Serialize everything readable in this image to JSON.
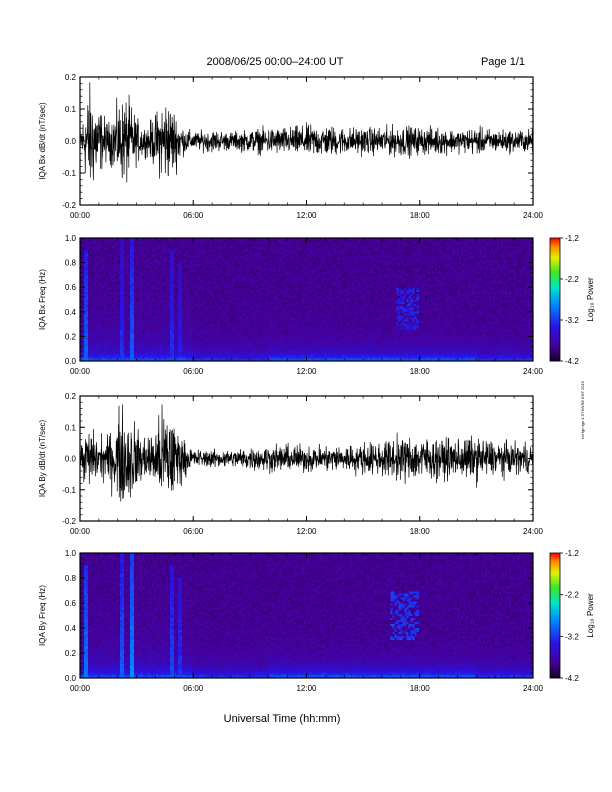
{
  "header": {
    "title": "2008/06/25  00:00–24:00 UT",
    "page": "Page 1/1"
  },
  "footer": {
    "xlabel": "Universal Time (hh:mm)",
    "side_note": "rot fgn fgn 4 STHNRE ESF 2019"
  },
  "colorbar": {
    "label": "Log₁₀ Power",
    "ticks": [
      "-1.2",
      "-2.2",
      "-3.2",
      "-4.2"
    ],
    "range": [
      -4.2,
      -1.2
    ]
  },
  "chart_data": [
    {
      "type": "line",
      "name": "bx-waveform",
      "ylabel": "IQA Bx dB/dt (nT/sec)",
      "ylim": [
        -0.2,
        0.2
      ],
      "yticks": [
        "0.2",
        "0.1",
        "0.0",
        "-0.1",
        "-0.2"
      ],
      "xlim": [
        "00:00",
        "24:00"
      ],
      "xticks": [
        "00:00",
        "06:00",
        "12:00",
        "18:00",
        "24:00"
      ],
      "envelope": {
        "hours": [
          0,
          0.5,
          1,
          1.5,
          2,
          2.5,
          3,
          3.5,
          4,
          4.5,
          5,
          5.5,
          6,
          7,
          8,
          9,
          10,
          11,
          12,
          13,
          14,
          15,
          16,
          17,
          18,
          19,
          20,
          21,
          22,
          23,
          24
        ],
        "amplitude": [
          0.05,
          0.25,
          0.15,
          0.08,
          0.16,
          0.2,
          0.1,
          0.06,
          0.12,
          0.2,
          0.14,
          0.06,
          0.04,
          0.05,
          0.04,
          0.05,
          0.06,
          0.06,
          0.07,
          0.07,
          0.06,
          0.06,
          0.06,
          0.07,
          0.06,
          0.06,
          0.05,
          0.06,
          0.05,
          0.05,
          0.05
        ]
      }
    },
    {
      "type": "heatmap",
      "name": "bx-spectrogram",
      "ylabel": "IQA Bx Freq (Hz)",
      "ylim": [
        0.0,
        1.0
      ],
      "yticks": [
        "1.0",
        "0.8",
        "0.6",
        "0.4",
        "0.2",
        "0.0"
      ],
      "xlim": [
        "00:00",
        "24:00"
      ],
      "xticks": [
        "00:00",
        "06:00",
        "12:00",
        "18:00",
        "24:00"
      ],
      "zlim": [
        -4.2,
        -1.2
      ],
      "enhancements": [
        {
          "hour": 0.3,
          "fmax": 0.9,
          "power": -3.0
        },
        {
          "hour": 2.2,
          "fmax": 1.0,
          "power": -3.2
        },
        {
          "hour": 2.8,
          "fmax": 1.0,
          "power": -3.0
        },
        {
          "hour": 4.9,
          "fmax": 0.9,
          "power": -3.2
        },
        {
          "hour": 5.3,
          "fmax": 0.8,
          "power": -3.3
        }
      ],
      "patches": [
        {
          "hour_from": 16.8,
          "hour_to": 18.0,
          "f_from": 0.25,
          "f_to": 0.6,
          "power": -3.3
        }
      ]
    },
    {
      "type": "line",
      "name": "by-waveform",
      "ylabel": "IQA By dB/dt (nT/sec)",
      "ylim": [
        -0.2,
        0.2
      ],
      "yticks": [
        "0.2",
        "0.1",
        "0.0",
        "-0.1",
        "-0.2"
      ],
      "xlim": [
        "00:00",
        "24:00"
      ],
      "xticks": [
        "00:00",
        "06:00",
        "12:00",
        "18:00",
        "24:00"
      ],
      "envelope": {
        "hours": [
          0,
          0.5,
          1,
          1.5,
          2,
          2.5,
          3,
          3.5,
          4,
          4.5,
          5,
          5.5,
          6,
          7,
          8,
          9,
          10,
          11,
          12,
          13,
          14,
          15,
          16,
          17,
          18,
          19,
          20,
          21,
          22,
          23,
          24
        ],
        "amplitude": [
          0.06,
          0.14,
          0.1,
          0.1,
          0.2,
          0.24,
          0.14,
          0.1,
          0.14,
          0.25,
          0.18,
          0.08,
          0.04,
          0.04,
          0.04,
          0.05,
          0.06,
          0.06,
          0.06,
          0.06,
          0.06,
          0.07,
          0.08,
          0.1,
          0.1,
          0.09,
          0.09,
          0.1,
          0.08,
          0.07,
          0.07
        ]
      }
    },
    {
      "type": "heatmap",
      "name": "by-spectrogram",
      "ylabel": "IQA By Freq (Hz)",
      "ylim": [
        0.0,
        1.0
      ],
      "yticks": [
        "1.0",
        "0.8",
        "0.6",
        "0.4",
        "0.2",
        "0.0"
      ],
      "xlim": [
        "00:00",
        "24:00"
      ],
      "xticks": [
        "00:00",
        "06:00",
        "12:00",
        "18:00",
        "24:00"
      ],
      "zlim": [
        -4.2,
        -1.2
      ],
      "enhancements": [
        {
          "hour": 0.3,
          "fmax": 0.9,
          "power": -2.9
        },
        {
          "hour": 2.2,
          "fmax": 1.0,
          "power": -3.0
        },
        {
          "hour": 2.8,
          "fmax": 1.0,
          "power": -2.8
        },
        {
          "hour": 4.9,
          "fmax": 0.9,
          "power": -3.1
        },
        {
          "hour": 5.3,
          "fmax": 0.8,
          "power": -3.2
        }
      ],
      "patches": [
        {
          "hour_from": 16.5,
          "hour_to": 18.0,
          "f_from": 0.3,
          "f_to": 0.7,
          "power": -3.2
        }
      ]
    }
  ]
}
